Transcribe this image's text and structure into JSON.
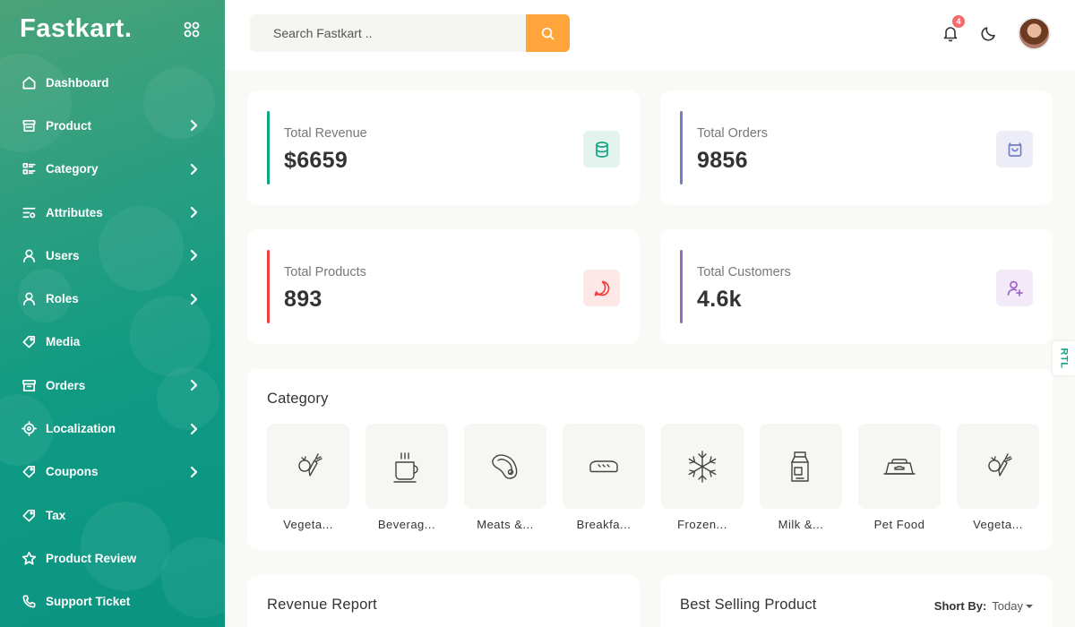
{
  "brand": {
    "name": "Fastkart."
  },
  "sidebar": {
    "items": [
      {
        "label": "Dashboard",
        "icon": "home-icon",
        "has_arrow": false
      },
      {
        "label": "Product",
        "icon": "store-icon",
        "has_arrow": true
      },
      {
        "label": "Category",
        "icon": "list-icon",
        "has_arrow": true
      },
      {
        "label": "Attributes",
        "icon": "list-settings-icon",
        "has_arrow": true
      },
      {
        "label": "Users",
        "icon": "user-icon",
        "has_arrow": true
      },
      {
        "label": "Roles",
        "icon": "user-icon",
        "has_arrow": true
      },
      {
        "label": "Media",
        "icon": "tag-icon",
        "has_arrow": false
      },
      {
        "label": "Orders",
        "icon": "archive-icon",
        "has_arrow": true
      },
      {
        "label": "Localization",
        "icon": "crosshair-icon",
        "has_arrow": true
      },
      {
        "label": "Coupons",
        "icon": "tag-icon",
        "has_arrow": true
      },
      {
        "label": "Tax",
        "icon": "tag-icon",
        "has_arrow": false
      },
      {
        "label": "Product Review",
        "icon": "star-icon",
        "has_arrow": false
      },
      {
        "label": "Support Ticket",
        "icon": "phone-icon",
        "has_arrow": false
      }
    ]
  },
  "header": {
    "search_placeholder": "Search Fastkart ..",
    "notification_count": "4"
  },
  "stats": [
    {
      "label": "Total Revenue",
      "value": "$6659",
      "color": "#0da487",
      "bg": "#e3f4ef",
      "icon": "database-icon"
    },
    {
      "label": "Total Orders",
      "value": "9856",
      "color": "#747dc6",
      "bg": "#ecedf6",
      "icon": "shopping-bag-icon"
    },
    {
      "label": "Total Products",
      "value": "893",
      "color": "#ef3f3e",
      "bg": "#fde7e7",
      "icon": "chat-icon"
    },
    {
      "label": "Total Customers",
      "value": "4.6k",
      "color": "#9e65c2",
      "bg": "#f2eaf8",
      "icon": "user-add-icon"
    }
  ],
  "rtl_label": "RTL",
  "category": {
    "title": "Category",
    "items": [
      {
        "name": "Vegeta...",
        "icon": "vegetable-icon"
      },
      {
        "name": "Beverag...",
        "icon": "cup-icon"
      },
      {
        "name": "Meats &...",
        "icon": "steak-icon"
      },
      {
        "name": "Breakfa...",
        "icon": "bread-icon"
      },
      {
        "name": "Frozen...",
        "icon": "snowflake-icon"
      },
      {
        "name": "Milk &...",
        "icon": "milk-icon"
      },
      {
        "name": "Pet Food",
        "icon": "pet-bowl-icon"
      },
      {
        "name": "Vegeta...",
        "icon": "vegetable-icon"
      }
    ]
  },
  "revenue_report": {
    "title": "Revenue Report"
  },
  "best_selling": {
    "title": "Best Selling Product",
    "sort_label": "Short By:",
    "sort_value": "Today"
  }
}
